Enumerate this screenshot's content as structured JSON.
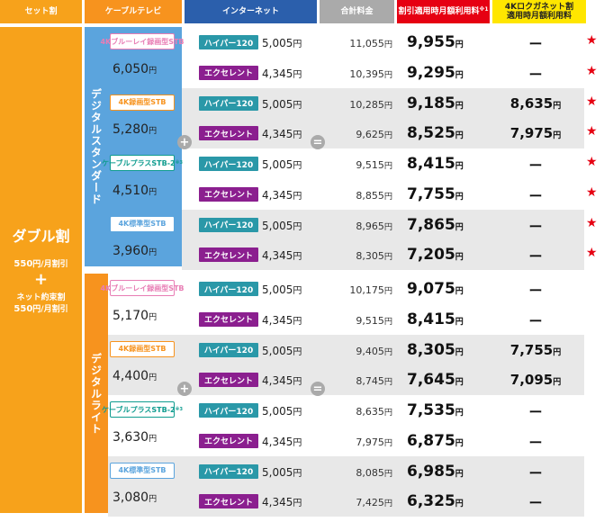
{
  "colors": {
    "set": "#f7a21b",
    "cable_header": "#f7931e",
    "net_header": "#2b5fac",
    "total_header": "#aaaaaa",
    "disc_header": "#e60012",
    "lg_header": "#ffe600",
    "standard_blue": "#5ba4dd",
    "light_orange": "#f7931e",
    "row_even": "#e8e8e8",
    "hyper_badge": "#2a98a8",
    "excellent_badge": "#8b1f8f",
    "star": "#e60012"
  },
  "headers": {
    "set": "セット割",
    "cable": "ケーブルテレビ",
    "net": "インターネット",
    "total": "合計料金",
    "disc": "割引適用時月額利用料",
    "disc_sup": "※1",
    "lg_line1": "4Kロクガネット割",
    "lg_line2": "適用時月額利用料"
  },
  "set": {
    "title": "ダブル割",
    "line1_amount": "550",
    "line1_unit": "円/月割引",
    "plus": "+",
    "line2": "ネット約束割",
    "line3_amount": "550",
    "line3_unit": "円/月割引"
  },
  "plans": {
    "standard": "デジタルスタンダード",
    "light": "デジタルライト"
  },
  "operators": {
    "plus": "+",
    "equals": "="
  },
  "yen": "円",
  "stbs": [
    {
      "name": "4Kブルーレイ録画型STB",
      "price": "6,050"
    },
    {
      "name": "4K録画型STB",
      "price": "5,280"
    },
    {
      "name": "ケーブルプラスSTB-2",
      "sup": "※3",
      "price": "4,510"
    },
    {
      "name": "4K標準型STB",
      "price": "3,960"
    },
    {
      "name": "4Kブルーレイ録画型STB",
      "price": "5,170"
    },
    {
      "name": "4K録画型STB",
      "price": "4,400"
    },
    {
      "name": "ケーブルプラスSTB-2",
      "sup": "※3",
      "price": "3,630"
    },
    {
      "name": "4K標準型STB",
      "price": "3,080"
    }
  ],
  "net": {
    "hyper": {
      "name": "ハイパー120",
      "price": "5,005"
    },
    "excellent": {
      "name": "エクセレント",
      "price": "4,345"
    }
  },
  "rows": [
    {
      "total": "11,055",
      "disc": "9,955",
      "lg": "ー",
      "star": "★"
    },
    {
      "total": "10,395",
      "disc": "9,295",
      "lg": "ー",
      "star": "★"
    },
    {
      "total": "10,285",
      "disc": "9,185",
      "lg": "8,635",
      "star": "★"
    },
    {
      "total": "9,625",
      "disc": "8,525",
      "lg": "7,975",
      "star": "★"
    },
    {
      "total": "9,515",
      "disc": "8,415",
      "lg": "ー",
      "star": "★"
    },
    {
      "total": "8,855",
      "disc": "7,755",
      "lg": "ー",
      "star": "★"
    },
    {
      "total": "8,965",
      "disc": "7,865",
      "lg": "ー",
      "star": "★"
    },
    {
      "total": "8,305",
      "disc": "7,205",
      "lg": "ー",
      "star": "★"
    },
    {
      "total": "10,175",
      "disc": "9,075",
      "lg": "ー",
      "star": ""
    },
    {
      "total": "9,515",
      "disc": "8,415",
      "lg": "ー",
      "star": ""
    },
    {
      "total": "9,405",
      "disc": "8,305",
      "lg": "7,755",
      "star": ""
    },
    {
      "total": "8,745",
      "disc": "7,645",
      "lg": "7,095",
      "star": ""
    },
    {
      "total": "8,635",
      "disc": "7,535",
      "lg": "ー",
      "star": ""
    },
    {
      "total": "7,975",
      "disc": "6,875",
      "lg": "ー",
      "star": ""
    },
    {
      "total": "8,085",
      "disc": "6,985",
      "lg": "ー",
      "star": ""
    },
    {
      "total": "7,425",
      "disc": "6,325",
      "lg": "ー",
      "star": ""
    }
  ]
}
